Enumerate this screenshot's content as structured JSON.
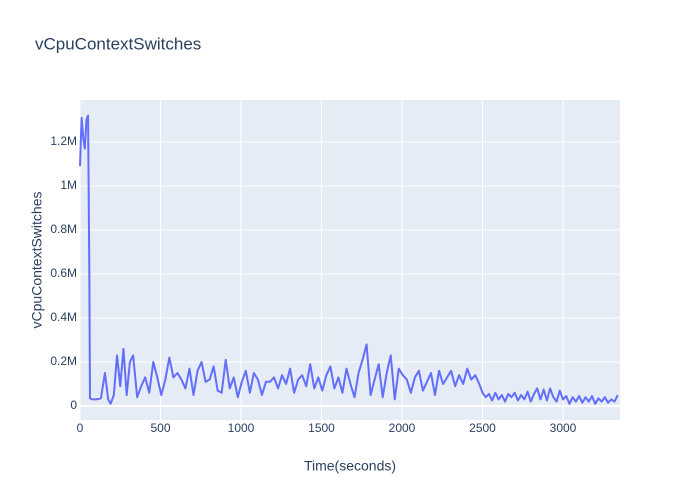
{
  "chart_data": {
    "type": "line",
    "title": "vCpuContextSwitches",
    "x_label": "Time(seconds)",
    "y_label": "vCpuContextSwitches",
    "color": "#636efa",
    "grid": true,
    "xlim": [
      0,
      3354
    ],
    "ylim": [
      -63600,
      1391000
    ],
    "xticks": [
      0,
      500,
      1000,
      1500,
      2000,
      2500,
      3000
    ],
    "yticks": [
      0,
      {
        "value": 200000,
        "label": "0.2M"
      },
      {
        "value": 400000,
        "label": "0.4M"
      },
      {
        "value": 600000,
        "label": "0.6M"
      },
      {
        "value": 800000,
        "label": "0.8M"
      },
      {
        "value": 1000000,
        "label": "1M"
      },
      {
        "value": 1200000,
        "label": "1.2M"
      }
    ],
    "x": [
      0,
      10,
      20,
      30,
      40,
      50,
      58,
      62,
      80,
      100,
      130,
      155,
      175,
      190,
      210,
      230,
      250,
      270,
      290,
      310,
      330,
      355,
      380,
      405,
      430,
      455,
      480,
      505,
      530,
      555,
      580,
      605,
      630,
      655,
      680,
      705,
      730,
      755,
      780,
      805,
      830,
      855,
      880,
      905,
      930,
      955,
      980,
      1005,
      1030,
      1055,
      1080,
      1105,
      1130,
      1155,
      1180,
      1205,
      1230,
      1255,
      1280,
      1305,
      1330,
      1355,
      1380,
      1405,
      1430,
      1455,
      1480,
      1505,
      1530,
      1555,
      1580,
      1605,
      1630,
      1655,
      1680,
      1705,
      1730,
      1755,
      1780,
      1805,
      1830,
      1855,
      1880,
      1905,
      1930,
      1955,
      1980,
      2005,
      2030,
      2055,
      2080,
      2105,
      2130,
      2155,
      2180,
      2205,
      2230,
      2255,
      2280,
      2305,
      2330,
      2355,
      2380,
      2405,
      2430,
      2455,
      2480,
      2500,
      2520,
      2540,
      2560,
      2580,
      2600,
      2620,
      2640,
      2660,
      2680,
      2700,
      2720,
      2740,
      2760,
      2780,
      2800,
      2820,
      2840,
      2860,
      2880,
      2900,
      2920,
      2940,
      2960,
      2980,
      3000,
      3020,
      3040,
      3060,
      3080,
      3100,
      3120,
      3140,
      3160,
      3180,
      3200,
      3220,
      3240,
      3260,
      3280,
      3300,
      3320,
      3340
    ],
    "values": [
      1090000,
      1310000,
      1220000,
      1170000,
      1300000,
      1320000,
      600000,
      35000,
      30000,
      30000,
      35000,
      150000,
      30000,
      10000,
      50000,
      230000,
      90000,
      260000,
      50000,
      200000,
      230000,
      40000,
      90000,
      130000,
      60000,
      200000,
      130000,
      50000,
      120000,
      220000,
      130000,
      150000,
      120000,
      80000,
      170000,
      50000,
      160000,
      200000,
      110000,
      120000,
      180000,
      70000,
      60000,
      210000,
      80000,
      130000,
      40000,
      110000,
      160000,
      60000,
      150000,
      120000,
      50000,
      110000,
      110000,
      130000,
      80000,
      140000,
      100000,
      170000,
      60000,
      120000,
      140000,
      90000,
      190000,
      80000,
      130000,
      70000,
      140000,
      180000,
      80000,
      130000,
      60000,
      170000,
      100000,
      40000,
      150000,
      210000,
      280000,
      50000,
      120000,
      190000,
      40000,
      150000,
      230000,
      30000,
      170000,
      140000,
      120000,
      60000,
      130000,
      160000,
      70000,
      110000,
      150000,
      50000,
      160000,
      100000,
      130000,
      160000,
      90000,
      140000,
      100000,
      170000,
      120000,
      140000,
      100000,
      60000,
      40000,
      55000,
      25000,
      60000,
      30000,
      50000,
      20000,
      55000,
      40000,
      60000,
      25000,
      50000,
      30000,
      65000,
      20000,
      55000,
      80000,
      30000,
      75000,
      25000,
      80000,
      40000,
      20000,
      70000,
      30000,
      45000,
      10000,
      40000,
      20000,
      45000,
      15000,
      40000,
      20000,
      45000,
      10000,
      35000,
      20000,
      40000,
      15000,
      30000,
      20000,
      50000
    ]
  }
}
